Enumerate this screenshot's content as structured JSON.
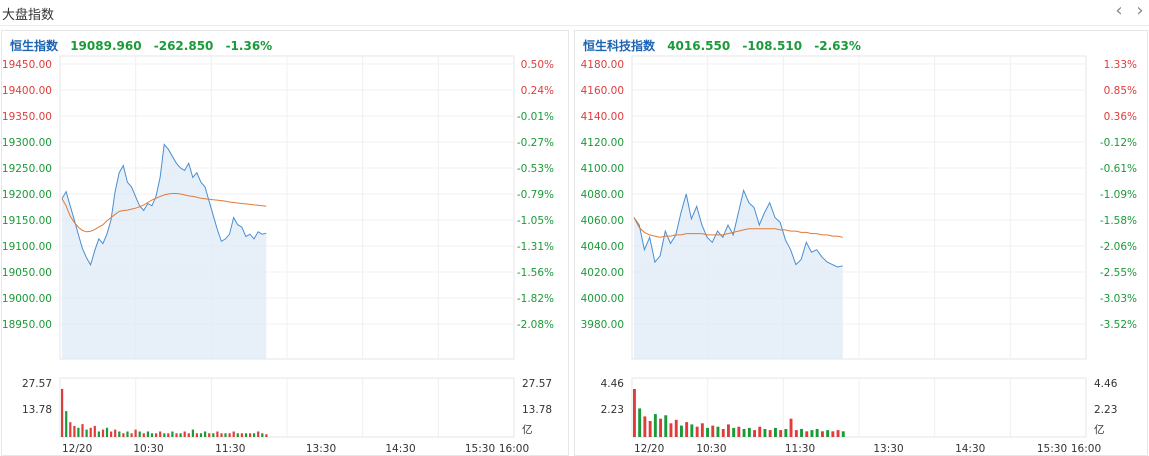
{
  "header": {
    "title": "大盘指数",
    "prev_icon": "chevron-left-icon",
    "next_icon": "chevron-right-icon"
  },
  "colors": {
    "up": "#e03c3c",
    "down": "#1a9a38",
    "price_line": "#4a8ed0",
    "avg_line": "#e07a3a",
    "title": "#1e64b4"
  },
  "chart_data": [
    {
      "type": "line",
      "name": "恒生指数",
      "price": "19089.960",
      "change": "-262.850",
      "change_pct": "-1.36%",
      "prev_close": 19352.81,
      "ylim": [
        18900,
        19450
      ],
      "y_ticks": [
        "19450.00",
        "19400.00",
        "19350.00",
        "19300.00",
        "19250.00",
        "19200.00",
        "19150.00",
        "19100.00",
        "19050.00",
        "19000.00",
        "18950.00"
      ],
      "pct_ticks": [
        "0.50%",
        "0.24%",
        "-0.01%",
        "-0.27%",
        "-0.53%",
        "-0.79%",
        "-1.05%",
        "-1.31%",
        "-1.56%",
        "-1.82%",
        "-2.08%"
      ],
      "x_ticks": [
        "12/20",
        "10:30",
        "11:30",
        "13:30",
        "14:30",
        "15:30",
        "16:00"
      ],
      "series": [
        {
          "values": [
            19165,
            19180,
            19150,
            19120,
            19090,
            19060,
            19040,
            19025,
            19055,
            19080,
            19070,
            19090,
            19120,
            19180,
            19220,
            19235,
            19200,
            19190,
            19170,
            19150,
            19140,
            19155,
            19150,
            19170,
            19210,
            19280,
            19270,
            19255,
            19240,
            19230,
            19225,
            19240,
            19210,
            19220,
            19200,
            19190,
            19160,
            19130,
            19100,
            19075,
            19080,
            19090,
            19125,
            19110,
            19105,
            19085,
            19090,
            19080,
            19095,
            19090,
            19092
          ]
        },
        {
          "values": [
            19165,
            19150,
            19128,
            19115,
            19105,
            19098,
            19095,
            19096,
            19100,
            19105,
            19110,
            19118,
            19125,
            19132,
            19138,
            19140,
            19141,
            19143,
            19145,
            19148,
            19152,
            19157,
            19162,
            19166,
            19170,
            19173,
            19175,
            19176,
            19176,
            19175,
            19173,
            19171,
            19170,
            19168,
            19166,
            19165,
            19164,
            19163,
            19162,
            19161,
            19160,
            19158,
            19157,
            19156,
            19155,
            19154,
            19153,
            19152,
            19151,
            19150,
            19149
          ]
        }
      ],
      "volume": {
        "ticks_left": [
          "27.57",
          "13.78"
        ],
        "ticks_right": [
          "27.57",
          "13.78",
          "亿"
        ],
        "max": 27.57,
        "values": [
          26,
          14,
          8,
          6,
          5,
          7,
          4,
          5,
          6,
          3,
          4,
          5,
          3,
          4,
          3,
          2,
          3,
          2,
          4,
          3,
          2,
          3,
          2,
          2,
          3,
          2,
          2,
          3,
          2,
          2,
          3,
          2,
          4,
          2,
          2,
          3,
          2,
          2,
          3,
          2,
          2,
          2,
          3,
          2,
          2,
          2,
          2,
          2,
          3,
          2,
          1.5
        ],
        "up": [
          1,
          0,
          1,
          1,
          0,
          1,
          0,
          1,
          1,
          0,
          1,
          0,
          1,
          1,
          0,
          1,
          0,
          1,
          1,
          0,
          1,
          0,
          0,
          1,
          1,
          0,
          1,
          0,
          1,
          0,
          1,
          1,
          0,
          1,
          0,
          0,
          1,
          0,
          1,
          1,
          0,
          1,
          1,
          0,
          1,
          0,
          1,
          0,
          1,
          0,
          1
        ]
      }
    },
    {
      "type": "line",
      "name": "恒生科技指数",
      "price": "4016.550",
      "change": "-108.510",
      "change_pct": "-2.63%",
      "prev_close": 4125.06,
      "ylim": [
        3970,
        4180
      ],
      "y_ticks": [
        "4180.00",
        "4160.00",
        "4140.00",
        "4120.00",
        "4100.00",
        "4080.00",
        "4060.00",
        "4040.00",
        "4020.00",
        "4000.00",
        "3980.00"
      ],
      "pct_ticks": [
        "1.33%",
        "0.85%",
        "0.36%",
        "-0.12%",
        "-0.61%",
        "-1.09%",
        "-1.58%",
        "-2.06%",
        "-2.55%",
        "-3.03%",
        "-3.52%"
      ],
      "x_ticks": [
        "12/20",
        "10:30",
        "11:30",
        "13:30",
        "14:30",
        "15:30",
        "16:00"
      ],
      "series": [
        {
          "values": [
            4056,
            4050,
            4030,
            4040,
            4020,
            4025,
            4045,
            4035,
            4042,
            4060,
            4075,
            4055,
            4065,
            4050,
            4040,
            4036,
            4045,
            4040,
            4050,
            4042,
            4060,
            4078,
            4068,
            4064,
            4050,
            4060,
            4068,
            4056,
            4052,
            4038,
            4030,
            4018,
            4022,
            4036,
            4028,
            4030,
            4024,
            4020,
            4018,
            4016,
            4017
          ]
        },
        {
          "values": [
            4056,
            4048,
            4044,
            4042,
            4041,
            4040,
            4041,
            4041,
            4042,
            4042,
            4043,
            4043,
            4043,
            4043,
            4042,
            4042,
            4042,
            4042,
            4043,
            4044,
            4045,
            4046,
            4047,
            4047,
            4047,
            4047,
            4047,
            4047,
            4046,
            4046,
            4045,
            4045,
            4044,
            4044,
            4043,
            4043,
            4042,
            4042,
            4041,
            4041,
            4040
          ]
        }
      ],
      "volume": {
        "ticks_left": [
          "4.46",
          "2.23"
        ],
        "ticks_right": [
          "4.46",
          "2.23",
          "亿"
        ],
        "max": 4.46,
        "values": [
          4.2,
          2.5,
          1.8,
          1.4,
          2.0,
          1.6,
          1.9,
          1.2,
          1.5,
          1.0,
          1.3,
          1.1,
          0.9,
          1.2,
          0.8,
          1.0,
          0.9,
          0.7,
          1.1,
          0.8,
          0.9,
          0.7,
          0.8,
          0.6,
          0.9,
          0.7,
          0.6,
          0.8,
          0.6,
          0.7,
          1.6,
          0.6,
          0.7,
          0.5,
          0.6,
          0.7,
          0.5,
          0.6,
          0.5,
          0.6,
          0.5
        ],
        "up": [
          1,
          0,
          1,
          1,
          0,
          1,
          0,
          1,
          1,
          0,
          1,
          0,
          1,
          1,
          0,
          1,
          0,
          1,
          1,
          0,
          1,
          0,
          0,
          1,
          1,
          0,
          1,
          0,
          1,
          0,
          1,
          1,
          0,
          1,
          0,
          0,
          1,
          0,
          1,
          1,
          0
        ]
      }
    }
  ]
}
